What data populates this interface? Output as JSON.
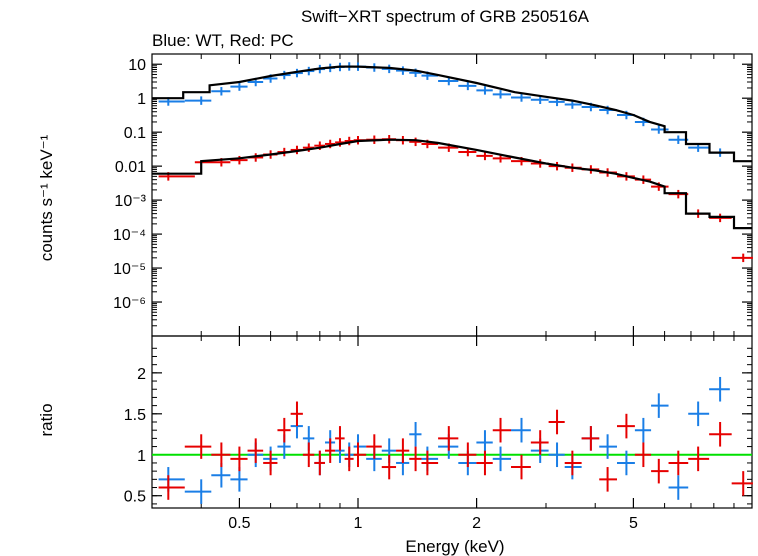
{
  "chart_data": {
    "type": "scatter",
    "title": "Swift−XRT spectrum of GRB 250516A",
    "subtitle": "Blue: WT, Red: PC",
    "xlabel": "Energy (keV)",
    "x_scale": "log",
    "xlim": [
      0.3,
      10
    ],
    "x_ticks": [
      {
        "value": 0.5,
        "label": "0.5"
      },
      {
        "value": 1,
        "label": "1"
      },
      {
        "value": 2,
        "label": "2"
      },
      {
        "value": 5,
        "label": "5"
      }
    ],
    "colors": {
      "WT": "#1a7ee6",
      "PC": "#e60000",
      "model": "#000000",
      "unity": "#00e000"
    },
    "panels": [
      {
        "name": "spectrum",
        "ylabel": "counts s⁻¹ keV⁻¹",
        "y_scale": "log",
        "ylim": [
          1e-07,
          20
        ],
        "y_ticks": [
          {
            "value": 10,
            "label": "10"
          },
          {
            "value": 1,
            "label": "1"
          },
          {
            "value": 0.1,
            "label": "0.1"
          },
          {
            "value": 0.01,
            "label": "0.01"
          },
          {
            "value": 0.001,
            "label": "10⁻³"
          },
          {
            "value": 0.0001,
            "label": "10⁻⁴"
          },
          {
            "value": 1e-05,
            "label": "10⁻⁵"
          },
          {
            "value": 1e-06,
            "label": "10⁻⁶"
          }
        ],
        "series": [
          {
            "name": "WT",
            "x": [
              0.33,
              0.4,
              0.45,
              0.5,
              0.55,
              0.6,
              0.65,
              0.7,
              0.75,
              0.8,
              0.85,
              0.9,
              0.95,
              1.0,
              1.1,
              1.2,
              1.3,
              1.4,
              1.5,
              1.7,
              1.9,
              2.1,
              2.3,
              2.6,
              2.9,
              3.2,
              3.5,
              3.9,
              4.3,
              4.8,
              5.3,
              5.8,
              6.5,
              7.3,
              8.3
            ],
            "y": [
              0.8,
              0.85,
              1.6,
              2.2,
              3.0,
              3.8,
              4.8,
              5.5,
              6.3,
              7.2,
              7.8,
              8.3,
              8.6,
              8.5,
              8.0,
              7.3,
              6.5,
              5.6,
              4.6,
              3.2,
              2.3,
              1.7,
              1.3,
              1.05,
              0.9,
              0.78,
              0.65,
              0.55,
              0.45,
              0.32,
              0.2,
              0.12,
              0.06,
              0.035,
              0.025
            ]
          },
          {
            "name": "PC",
            "x": [
              0.33,
              0.45,
              0.5,
              0.55,
              0.6,
              0.65,
              0.7,
              0.75,
              0.8,
              0.85,
              0.9,
              0.95,
              1.0,
              1.1,
              1.2,
              1.3,
              1.4,
              1.5,
              1.7,
              1.9,
              2.1,
              2.3,
              2.6,
              2.9,
              3.2,
              3.5,
              3.9,
              4.3,
              4.8,
              5.3,
              5.8,
              6.5,
              7.3,
              8.3,
              9.5
            ],
            "y": [
              0.005,
              0.013,
              0.015,
              0.018,
              0.022,
              0.026,
              0.03,
              0.035,
              0.04,
              0.045,
              0.05,
              0.055,
              0.058,
              0.06,
              0.062,
              0.058,
              0.052,
              0.045,
              0.035,
              0.026,
              0.02,
              0.017,
              0.014,
              0.012,
              0.01,
              0.009,
              0.008,
              0.0065,
              0.005,
              0.004,
              0.0025,
              0.0015,
              0.0004,
              0.0003,
              2e-05
            ]
          },
          {
            "name": "model WT",
            "x": [
              0.3,
              0.36,
              0.36,
              0.42,
              0.42,
              0.5,
              0.6,
              0.7,
              0.8,
              0.9,
              1.0,
              1.2,
              1.4,
              1.6,
              2.0,
              2.5,
              3.0,
              3.5,
              4.0,
              4.5,
              5.0,
              5.5,
              6.0,
              6.0,
              6.8,
              6.8,
              7.8,
              7.8,
              9.0,
              9.0,
              10.0
            ],
            "y": [
              1.0,
              1.0,
              1.5,
              1.5,
              2.4,
              3.0,
              4.5,
              6.0,
              7.5,
              8.5,
              8.5,
              7.8,
              6.5,
              4.8,
              2.8,
              1.5,
              1.1,
              0.85,
              0.62,
              0.45,
              0.32,
              0.2,
              0.15,
              0.1,
              0.1,
              0.045,
              0.045,
              0.025,
              0.025,
              0.014,
              0.014
            ]
          },
          {
            "name": "model PC",
            "x": [
              0.3,
              0.4,
              0.4,
              0.5,
              0.6,
              0.7,
              0.8,
              0.9,
              1.0,
              1.2,
              1.4,
              1.6,
              2.0,
              2.5,
              3.0,
              3.5,
              4.0,
              4.5,
              5.0,
              5.5,
              6.0,
              6.0,
              6.8,
              6.8,
              7.8,
              7.8,
              9.0,
              9.0,
              10.0
            ],
            "y": [
              0.006,
              0.006,
              0.014,
              0.017,
              0.022,
              0.028,
              0.035,
              0.045,
              0.055,
              0.06,
              0.058,
              0.048,
              0.03,
              0.018,
              0.012,
              0.009,
              0.0075,
              0.006,
              0.0045,
              0.0035,
              0.0025,
              0.0016,
              0.0016,
              0.0004,
              0.0004,
              0.00032,
              0.00032,
              0.00015,
              0.00015
            ]
          }
        ]
      },
      {
        "name": "ratio",
        "ylabel": "ratio",
        "y_scale": "linear",
        "ylim": [
          0.35,
          2.45
        ],
        "y_ticks": [
          {
            "value": 0.5,
            "label": "0.5"
          },
          {
            "value": 1,
            "label": "1"
          },
          {
            "value": 1.5,
            "label": "1.5"
          },
          {
            "value": 2,
            "label": "2"
          }
        ],
        "unity_line": 1,
        "series": [
          {
            "name": "WT",
            "x": [
              0.33,
              0.4,
              0.45,
              0.5,
              0.55,
              0.6,
              0.65,
              0.7,
              0.75,
              0.8,
              0.85,
              0.9,
              0.95,
              1.0,
              1.1,
              1.2,
              1.3,
              1.4,
              1.5,
              1.7,
              1.9,
              2.1,
              2.3,
              2.6,
              2.9,
              3.2,
              3.5,
              3.9,
              4.3,
              4.8,
              5.3,
              5.8,
              6.5,
              7.3,
              8.3
            ],
            "y": [
              0.7,
              0.55,
              0.75,
              0.7,
              1.0,
              0.95,
              1.1,
              1.35,
              1.2,
              0.9,
              1.15,
              1.05,
              1.0,
              1.1,
              0.95,
              1.05,
              0.9,
              1.25,
              0.95,
              1.1,
              0.9,
              1.15,
              0.95,
              1.3,
              1.05,
              1.0,
              0.85,
              1.2,
              1.1,
              0.9,
              1.3,
              1.6,
              0.6,
              1.5,
              1.8
            ]
          },
          {
            "name": "PC",
            "x": [
              0.33,
              0.4,
              0.45,
              0.5,
              0.55,
              0.6,
              0.65,
              0.7,
              0.75,
              0.8,
              0.85,
              0.9,
              0.95,
              1.0,
              1.1,
              1.2,
              1.3,
              1.4,
              1.5,
              1.7,
              1.9,
              2.1,
              2.3,
              2.6,
              2.9,
              3.2,
              3.5,
              3.9,
              4.3,
              4.8,
              5.3,
              5.8,
              6.5,
              7.3,
              8.3,
              9.5
            ],
            "y": [
              0.6,
              1.1,
              1.0,
              0.95,
              1.05,
              0.9,
              1.3,
              1.5,
              1.0,
              0.9,
              1.05,
              1.2,
              0.95,
              1.0,
              1.1,
              0.85,
              1.05,
              0.95,
              0.9,
              1.2,
              1.0,
              0.9,
              1.3,
              0.85,
              1.15,
              1.4,
              0.9,
              1.2,
              0.7,
              1.35,
              1.0,
              0.8,
              0.9,
              0.95,
              1.25,
              0.65
            ]
          }
        ]
      }
    ]
  }
}
